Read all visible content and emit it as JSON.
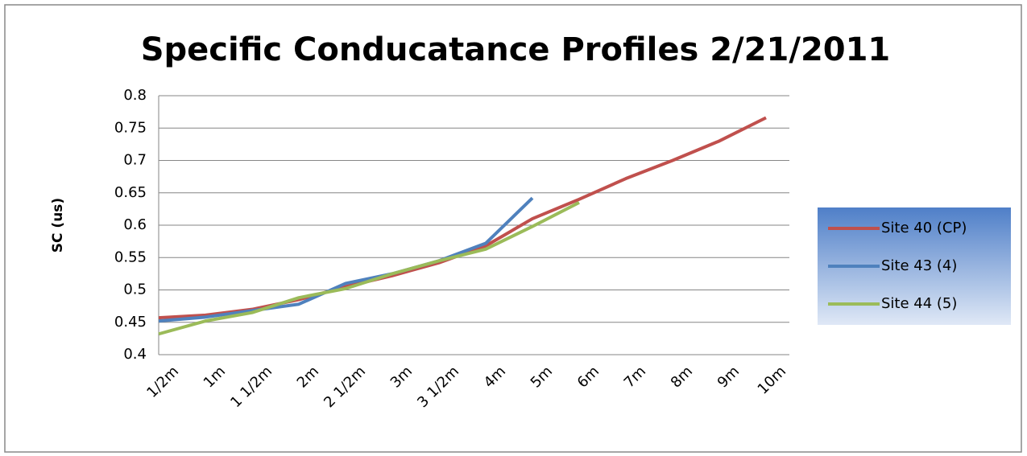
{
  "chart_data": {
    "type": "line",
    "title": "Specific Conducatance Profiles 2/21/2011",
    "y_label": "SC (us)",
    "categories": [
      "1/2m",
      "1m",
      "1 1/2m",
      "2m",
      "2 1/2m",
      "3m",
      "3 1/2m",
      "4m",
      "5m",
      "6m",
      "7m",
      "8m",
      "9m",
      "10m"
    ],
    "series": [
      {
        "name": "Site 40 (CP)",
        "color": "#c0504d",
        "values": [
          0.457,
          0.461,
          0.47,
          0.485,
          0.505,
          0.522,
          0.542,
          0.568,
          0.61,
          0.64,
          0.672,
          0.7,
          0.73,
          0.766
        ]
      },
      {
        "name": "Site 43 (4)",
        "color": "#4f81bd",
        "values": [
          0.452,
          0.458,
          0.468,
          0.478,
          0.51,
          0.525,
          0.545,
          0.572,
          0.642,
          null,
          null,
          null,
          null,
          null
        ]
      },
      {
        "name": "Site 44 (5)",
        "color": "#9bbb59",
        "values": [
          0.432,
          0.452,
          0.465,
          0.488,
          0.502,
          0.525,
          0.545,
          0.563,
          0.598,
          0.635,
          null,
          null,
          null,
          null
        ]
      }
    ],
    "ylim": [
      0.4,
      0.8
    ],
    "yticks": [
      0.4,
      0.45,
      0.5,
      0.55,
      0.6,
      0.65,
      0.7,
      0.75,
      0.8
    ],
    "grid": true,
    "legend": "right"
  }
}
